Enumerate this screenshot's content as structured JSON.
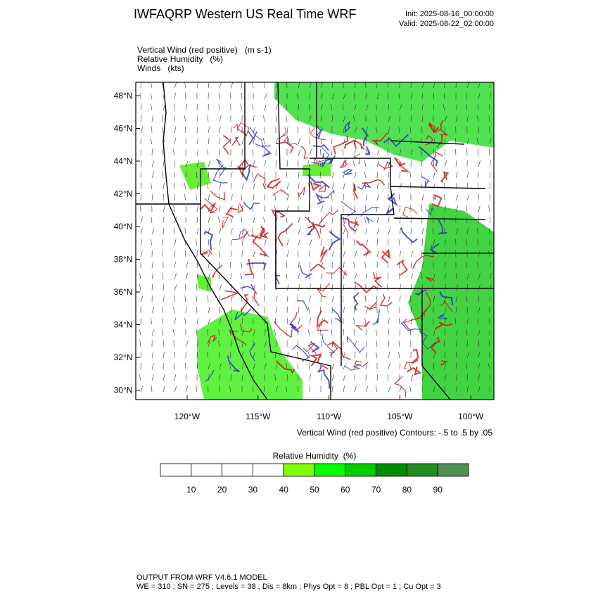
{
  "header": {
    "title": "IWFAQRP Western US Real Time WRF",
    "init": "Init: 2025-08-16_00:00:00",
    "valid": "Valid: 2025-08-22_02:00:00"
  },
  "fields": [
    "Vertical Wind (red positive)   (m s-1)",
    "Relative Humidity   (%)",
    "Winds   (kts)"
  ],
  "map": {
    "lat_labels": [
      "48°N",
      "46°N",
      "44°N",
      "42°N",
      "40°N",
      "38°N",
      "36°N",
      "34°N",
      "32°N",
      "30°N"
    ],
    "lon_labels": [
      "120°W",
      "115°W",
      "110°W",
      "105°W",
      "100°W"
    ],
    "contour_note": "Vertical Wind (red positive) Contours: -.5 to .5 by .05"
  },
  "colorbar": {
    "title": "Relative Humidity  (%)",
    "labels": [
      "10",
      "20",
      "30",
      "40",
      "50",
      "60",
      "70",
      "80",
      "90"
    ],
    "colors": [
      "#ffffff",
      "#ffffff",
      "#ffffff",
      "#ffffff",
      "#7fff00",
      "#00ff00",
      "#00cd00",
      "#008b00",
      "#228b22",
      "#4f8f4f"
    ]
  },
  "footer": {
    "line1": "OUTPUT FROM WRF V4.6.1 MODEL",
    "line2": "WE = 310 ; SN = 275 ; Levels = 38 ; Dis = 8km ; Phys Opt = 8 ; PBL Opt = 1 ; Cu Opt = 3"
  }
}
